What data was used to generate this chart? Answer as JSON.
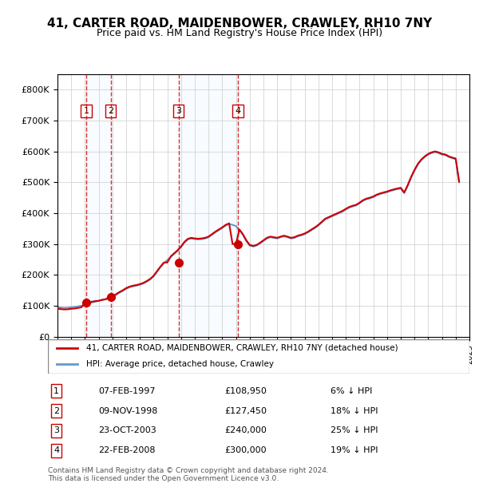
{
  "title": "41, CARTER ROAD, MAIDENBOWER, CRAWLEY, RH10 7NY",
  "subtitle": "Price paid vs. HM Land Registry's House Price Index (HPI)",
  "title_fontsize": 11,
  "subtitle_fontsize": 9,
  "hpi_color": "#6699cc",
  "price_color": "#cc0000",
  "background_color": "#ffffff",
  "plot_bg_color": "#ffffff",
  "grid_color": "#cccccc",
  "sale_marker_color": "#cc0000",
  "sale_vline_color": "#cc0000",
  "shade_color": "#ddeeff",
  "ylim": [
    0,
    850000
  ],
  "yticks": [
    0,
    100000,
    200000,
    300000,
    400000,
    500000,
    600000,
    700000,
    800000
  ],
  "ytick_labels": [
    "£0",
    "£100K",
    "£200K",
    "£300K",
    "£400K",
    "£500K",
    "£600K",
    "£700K",
    "£800K"
  ],
  "sales": [
    {
      "label": "1",
      "date": 1997.1,
      "price": 108950
    },
    {
      "label": "2",
      "date": 1998.87,
      "price": 127450
    },
    {
      "label": "3",
      "date": 2003.81,
      "price": 240000
    },
    {
      "label": "4",
      "date": 2008.14,
      "price": 300000
    }
  ],
  "sale_table": [
    {
      "num": "1",
      "date": "07-FEB-1997",
      "price": "£108,950",
      "pct": "6% ↓ HPI"
    },
    {
      "num": "2",
      "date": "09-NOV-1998",
      "price": "£127,450",
      "pct": "18% ↓ HPI"
    },
    {
      "num": "3",
      "date": "23-OCT-2003",
      "price": "£240,000",
      "pct": "25% ↓ HPI"
    },
    {
      "num": "4",
      "date": "22-FEB-2008",
      "price": "£300,000",
      "pct": "19% ↓ HPI"
    }
  ],
  "legend_label_red": "41, CARTER ROAD, MAIDENBOWER, CRAWLEY, RH10 7NY (detached house)",
  "legend_label_blue": "HPI: Average price, detached house, Crawley",
  "footer": "Contains HM Land Registry data © Crown copyright and database right 2024.\nThis data is licensed under the Open Government Licence v3.0.",
  "hpi_data": {
    "years": [
      1995.0,
      1995.25,
      1995.5,
      1995.75,
      1996.0,
      1996.25,
      1996.5,
      1996.75,
      1997.0,
      1997.25,
      1997.5,
      1997.75,
      1998.0,
      1998.25,
      1998.5,
      1998.75,
      1999.0,
      1999.25,
      1999.5,
      1999.75,
      2000.0,
      2000.25,
      2000.5,
      2000.75,
      2001.0,
      2001.25,
      2001.5,
      2001.75,
      2002.0,
      2002.25,
      2002.5,
      2002.75,
      2003.0,
      2003.25,
      2003.5,
      2003.75,
      2004.0,
      2004.25,
      2004.5,
      2004.75,
      2005.0,
      2005.25,
      2005.5,
      2005.75,
      2006.0,
      2006.25,
      2006.5,
      2006.75,
      2007.0,
      2007.25,
      2007.5,
      2007.75,
      2008.0,
      2008.25,
      2008.5,
      2008.75,
      2009.0,
      2009.25,
      2009.5,
      2009.75,
      2010.0,
      2010.25,
      2010.5,
      2010.75,
      2011.0,
      2011.25,
      2011.5,
      2011.75,
      2012.0,
      2012.25,
      2012.5,
      2012.75,
      2013.0,
      2013.25,
      2013.5,
      2013.75,
      2014.0,
      2014.25,
      2014.5,
      2014.75,
      2015.0,
      2015.25,
      2015.5,
      2015.75,
      2016.0,
      2016.25,
      2016.5,
      2016.75,
      2017.0,
      2017.25,
      2017.5,
      2017.75,
      2018.0,
      2018.25,
      2018.5,
      2018.75,
      2019.0,
      2019.25,
      2019.5,
      2019.75,
      2020.0,
      2020.25,
      2020.5,
      2020.75,
      2021.0,
      2021.25,
      2021.5,
      2021.75,
      2022.0,
      2022.25,
      2022.5,
      2022.75,
      2023.0,
      2023.25,
      2023.5,
      2023.75,
      2024.0,
      2024.25
    ],
    "values": [
      95000,
      94000,
      93000,
      93500,
      95000,
      96000,
      98000,
      100000,
      103000,
      107000,
      111000,
      113000,
      116000,
      119000,
      121000,
      122000,
      128000,
      135000,
      142000,
      148000,
      155000,
      160000,
      163000,
      165000,
      168000,
      172000,
      178000,
      185000,
      195000,
      210000,
      225000,
      238000,
      248000,
      258000,
      268000,
      278000,
      290000,
      305000,
      315000,
      318000,
      316000,
      315000,
      316000,
      318000,
      322000,
      330000,
      338000,
      345000,
      352000,
      360000,
      365000,
      362000,
      358000,
      345000,
      330000,
      310000,
      295000,
      292000,
      295000,
      302000,
      310000,
      318000,
      322000,
      320000,
      318000,
      322000,
      325000,
      322000,
      318000,
      320000,
      325000,
      328000,
      332000,
      338000,
      345000,
      352000,
      360000,
      370000,
      380000,
      385000,
      390000,
      395000,
      400000,
      405000,
      412000,
      418000,
      422000,
      425000,
      432000,
      440000,
      445000,
      448000,
      452000,
      458000,
      462000,
      465000,
      468000,
      472000,
      475000,
      478000,
      480000,
      465000,
      488000,
      515000,
      538000,
      558000,
      572000,
      582000,
      590000,
      595000,
      598000,
      595000,
      590000,
      588000,
      582000,
      578000,
      575000,
      500000
    ]
  },
  "price_data": {
    "years": [
      1995.0,
      1995.25,
      1995.5,
      1995.75,
      1996.0,
      1996.25,
      1996.5,
      1996.75,
      1997.0,
      1997.25,
      1997.5,
      1997.75,
      1998.0,
      1998.25,
      1998.5,
      1998.75,
      1999.0,
      1999.25,
      1999.5,
      1999.75,
      2000.0,
      2000.25,
      2000.5,
      2000.75,
      2001.0,
      2001.25,
      2001.5,
      2001.75,
      2002.0,
      2002.25,
      2002.5,
      2002.75,
      2003.0,
      2003.25,
      2003.5,
      2003.75,
      2004.0,
      2004.25,
      2004.5,
      2004.75,
      2005.0,
      2005.25,
      2005.5,
      2005.75,
      2006.0,
      2006.25,
      2006.5,
      2006.75,
      2007.0,
      2007.25,
      2007.5,
      2007.75,
      2008.0,
      2008.25,
      2008.5,
      2008.75,
      2009.0,
      2009.25,
      2009.5,
      2009.75,
      2010.0,
      2010.25,
      2010.5,
      2010.75,
      2011.0,
      2011.25,
      2011.5,
      2011.75,
      2012.0,
      2012.25,
      2012.5,
      2012.75,
      2013.0,
      2013.25,
      2013.5,
      2013.75,
      2014.0,
      2014.25,
      2014.5,
      2014.75,
      2015.0,
      2015.25,
      2015.5,
      2015.75,
      2016.0,
      2016.25,
      2016.5,
      2016.75,
      2017.0,
      2017.25,
      2017.5,
      2017.75,
      2018.0,
      2018.25,
      2018.5,
      2018.75,
      2019.0,
      2019.25,
      2019.5,
      2019.75,
      2020.0,
      2020.25,
      2020.5,
      2020.75,
      2021.0,
      2021.25,
      2021.5,
      2021.75,
      2022.0,
      2022.25,
      2022.5,
      2022.75,
      2023.0,
      2023.25,
      2023.5,
      2023.75,
      2024.0,
      2024.25
    ],
    "values": [
      90000,
      89000,
      88000,
      88500,
      90000,
      91000,
      93000,
      95000,
      108950,
      108950,
      113000,
      115000,
      116000,
      119000,
      121000,
      127450,
      130000,
      137000,
      144000,
      150000,
      157000,
      162000,
      165000,
      167000,
      170000,
      174000,
      180000,
      187000,
      197000,
      212000,
      227000,
      240000,
      240000,
      260000,
      270000,
      280000,
      292000,
      307000,
      317000,
      320000,
      318000,
      317000,
      318000,
      320000,
      324000,
      332000,
      340000,
      347000,
      354000,
      362000,
      367000,
      300000,
      300000,
      347000,
      332000,
      312000,
      297000,
      294000,
      297000,
      304000,
      312000,
      320000,
      324000,
      322000,
      320000,
      324000,
      327000,
      324000,
      320000,
      322000,
      327000,
      330000,
      334000,
      340000,
      347000,
      354000,
      362000,
      372000,
      382000,
      387000,
      392000,
      397000,
      402000,
      407000,
      414000,
      420000,
      424000,
      427000,
      434000,
      442000,
      447000,
      450000,
      454000,
      460000,
      464000,
      467000,
      470000,
      474000,
      477000,
      480000,
      482000,
      467000,
      490000,
      517000,
      540000,
      560000,
      574000,
      584000,
      592000,
      597000,
      600000,
      597000,
      592000,
      590000,
      584000,
      580000,
      577000,
      502000
    ]
  }
}
